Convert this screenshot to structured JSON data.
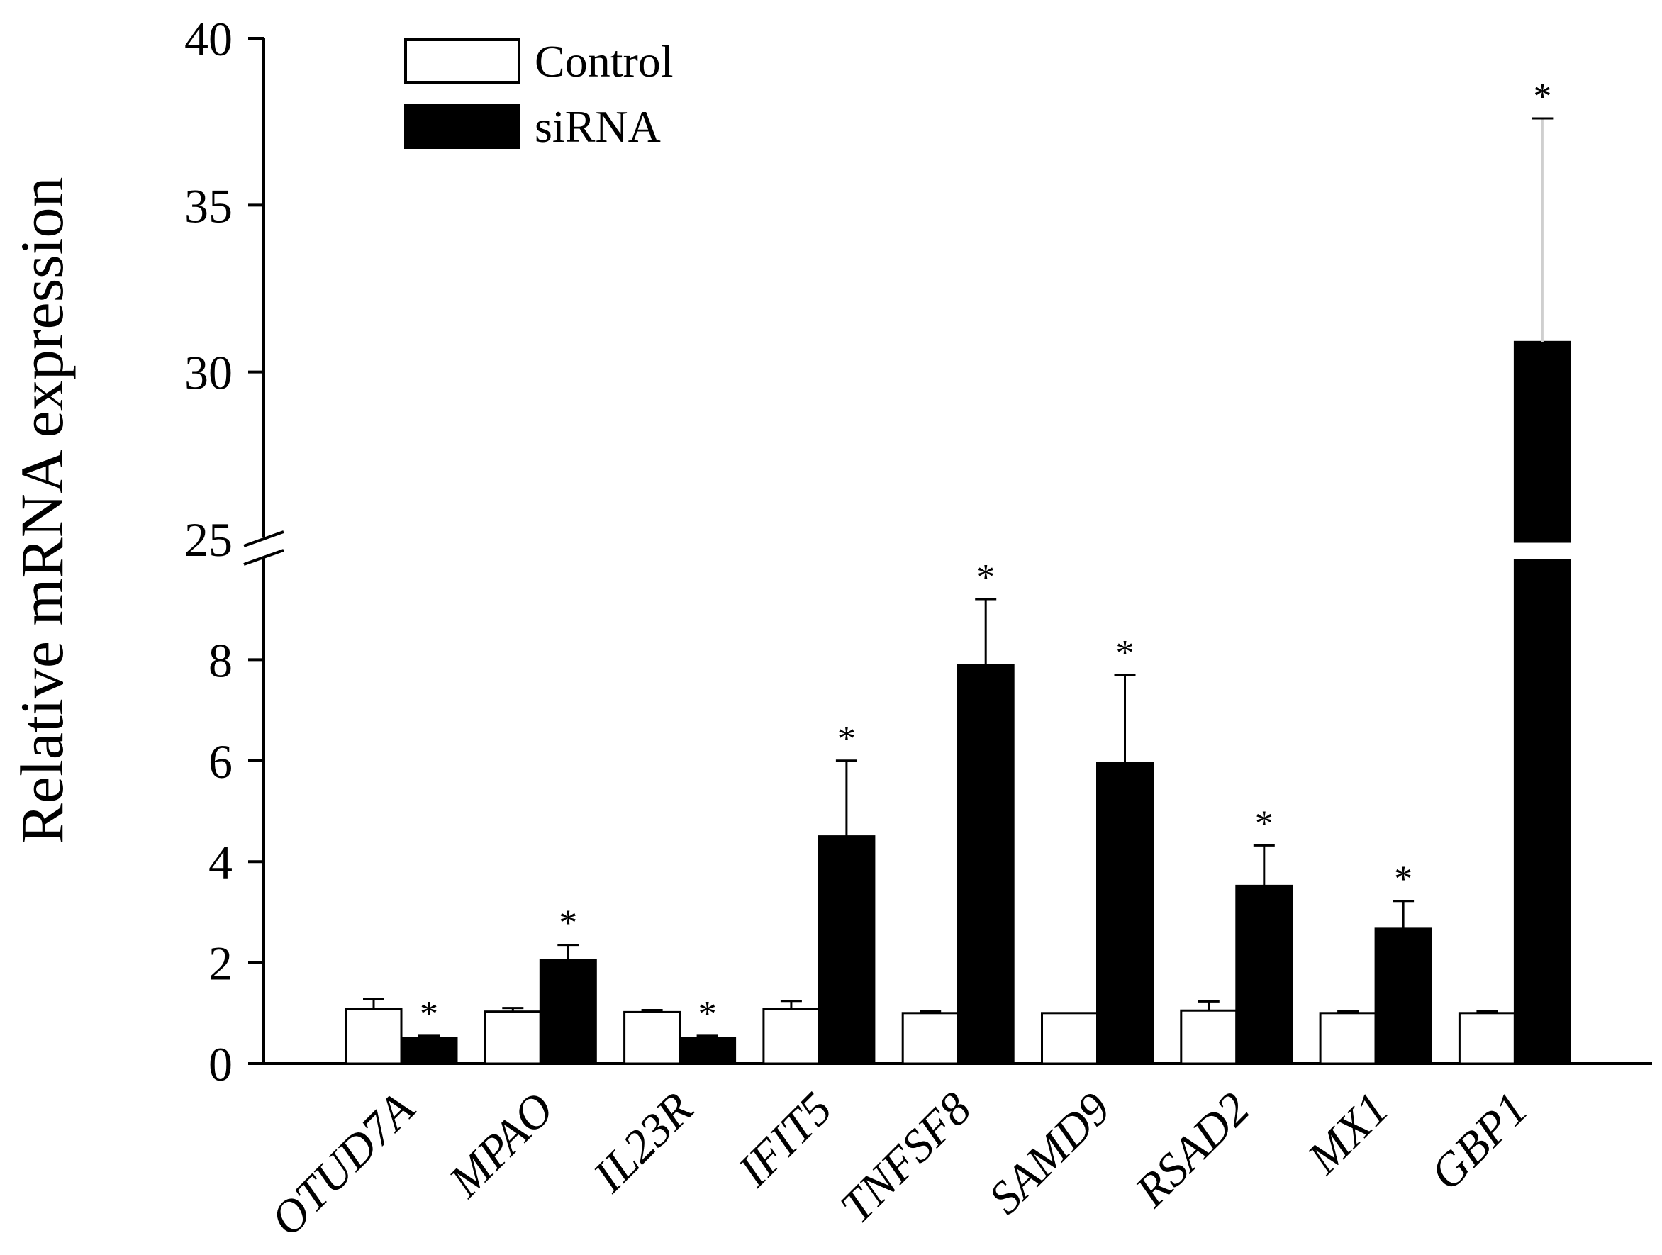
{
  "chart_data": {
    "type": "bar",
    "ylabel": "Relative mRNA expression",
    "xlabel": "",
    "categories": [
      "OTUD7A",
      "MPAO",
      "IL23R",
      "IFIT5",
      "TNFSF8",
      "SAMD9",
      "RSAD2",
      "MX1",
      "GBP1"
    ],
    "series": [
      {
        "name": "Control",
        "fill": "#ffffff",
        "values": [
          1.08,
          1.03,
          1.02,
          1.08,
          1.0,
          1.0,
          1.05,
          1.0,
          1.0
        ],
        "errors": [
          0.2,
          0.07,
          0.04,
          0.16,
          0.04,
          0.0,
          0.18,
          0.04,
          0.04
        ],
        "significant": [
          false,
          false,
          false,
          false,
          false,
          false,
          false,
          false,
          false
        ]
      },
      {
        "name": "siRNA",
        "fill": "#000000",
        "values": [
          0.5,
          2.05,
          0.5,
          4.5,
          7.9,
          5.95,
          3.52,
          2.67,
          30.9
        ],
        "errors": [
          0.05,
          0.3,
          0.05,
          1.5,
          1.3,
          1.75,
          0.8,
          0.55,
          6.7
        ],
        "significant": [
          true,
          true,
          true,
          true,
          true,
          true,
          true,
          true,
          true
        ]
      }
    ],
    "significance_marker": "*",
    "axis_break": {
      "lower_range": [
        0,
        9.5
      ],
      "upper_range": [
        25,
        40
      ]
    },
    "yticks_lower": [
      "0",
      "2",
      "4",
      "6",
      "8"
    ],
    "yticks_upper": [
      "25",
      "30",
      "35",
      "40"
    ],
    "legend_position": "top-left"
  }
}
